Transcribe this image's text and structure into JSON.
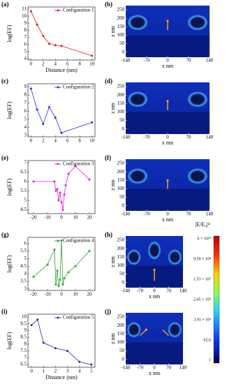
{
  "chart_data": [
    {
      "type": "line",
      "label": "(a)",
      "ylabel": "log(EF)",
      "xlabel": "Distance (nm)",
      "x": [
        0,
        1,
        2,
        3,
        4,
        5,
        10
      ],
      "series": [
        {
          "name": "Configuration 1",
          "color": "#e8141e",
          "values": [
            10.7,
            8.8,
            7.2,
            6.1,
            5.9,
            5.8,
            4.4
          ]
        }
      ],
      "xlim": [
        -0.5,
        10.5
      ],
      "ylim": [
        3.8,
        11.3
      ],
      "xticks": [
        0,
        2,
        4,
        6,
        8,
        10
      ],
      "yticks": [
        4,
        5,
        6,
        7,
        8,
        9,
        10,
        11
      ]
    },
    {
      "type": "line",
      "label": "(c)",
      "ylabel": "log(EF)",
      "x": [
        0,
        1,
        2,
        3,
        4,
        5,
        10
      ],
      "series": [
        {
          "name": "Configuration 2",
          "color": "#2a2ae0",
          "values": [
            8.8,
            6.2,
            4.4,
            6.5,
            5.2,
            3.3,
            4.6
          ]
        }
      ],
      "xlim": [
        -0.5,
        10.5
      ],
      "ylim": [
        2.8,
        9.4
      ],
      "xticks": [
        0,
        2,
        4,
        6,
        8,
        10
      ],
      "yticks": [
        3,
        4,
        5,
        6,
        7,
        8,
        9
      ]
    },
    {
      "type": "line",
      "label": "(e)",
      "ylabel": "log(EF)",
      "x": [
        -20,
        -5,
        -4,
        -3,
        -2,
        -1,
        0,
        1,
        2,
        3,
        5,
        10,
        20
      ],
      "series": [
        {
          "name": "Configuration 3",
          "color": "#e020d8",
          "values": [
            6.0,
            6.0,
            5.5,
            5.6,
            5.0,
            5.4,
            4.9,
            4.5,
            5.3,
            5.8,
            6.4,
            6.8,
            6.1
          ]
        }
      ],
      "xlim": [
        -24,
        24
      ],
      "ylim": [
        4.3,
        7.1
      ],
      "xticks": [
        -20,
        -10,
        0,
        10,
        20
      ],
      "yticks": [
        4.5,
        5,
        5.5,
        6,
        6.5,
        7
      ]
    },
    {
      "type": "line",
      "label": "(g)",
      "ylabel": "log(EF)",
      "x": [
        -20,
        -10,
        -5,
        -4,
        -3,
        -2,
        -1,
        0,
        1,
        2,
        5,
        10,
        20
      ],
      "series": [
        {
          "name": "Configuration 4",
          "color": "#30a030",
          "values": [
            3.8,
            4.6,
            5.6,
            3.3,
            4.2,
            3.2,
            3.6,
            6.2,
            3.3,
            3.7,
            4.1,
            4.5,
            5.5
          ]
        }
      ],
      "xlim": [
        -24,
        24
      ],
      "ylim": [
        2.9,
        6.4
      ],
      "xticks": [
        -20,
        -10,
        0,
        10,
        20
      ],
      "yticks": [
        3,
        3.5,
        4,
        4.5,
        5,
        5.5,
        6
      ]
    },
    {
      "type": "line",
      "label": "(i)",
      "ylabel": "log(EF)",
      "xlabel": "Distance (nm)",
      "x": [
        0,
        0.5,
        1,
        2,
        3,
        4,
        5
      ],
      "series": [
        {
          "name": "Configuration 5",
          "color": "#2a2ab0",
          "values": [
            9.4,
            9.8,
            8.1,
            7.7,
            7.5,
            6.7,
            6.5
          ]
        }
      ],
      "xlim": [
        -0.3,
        5.3
      ],
      "ylim": [
        6.3,
        10.2
      ],
      "xticks": [
        0,
        1,
        2,
        3,
        4,
        5
      ],
      "yticks": [
        6.5,
        7,
        7.5,
        8,
        8.5,
        9,
        9.5,
        10
      ]
    }
  ],
  "field_maps": {
    "panels": [
      {
        "label": "(b)"
      },
      {
        "label": "(d)"
      },
      {
        "label": "(f)"
      },
      {
        "label": "(h)"
      },
      {
        "label": "(j)"
      }
    ],
    "xlabel": "x nm",
    "ylabel": "z nm",
    "xlim": [
      -140,
      140
    ],
    "ylim": [
      -30,
      275
    ],
    "xticks": [
      -140,
      -70,
      0,
      70,
      140
    ],
    "yticks": [
      0,
      50,
      100,
      150,
      200,
      250
    ]
  },
  "colorbar": {
    "title": "|E/E₀|⁴",
    "labels": [
      "6 × 10¹⁰",
      "9.59 × 10⁸",
      "1.53 × 10⁷",
      "2.45 × 10⁵",
      "3.91 × 10³",
      "62.6",
      "1"
    ]
  }
}
